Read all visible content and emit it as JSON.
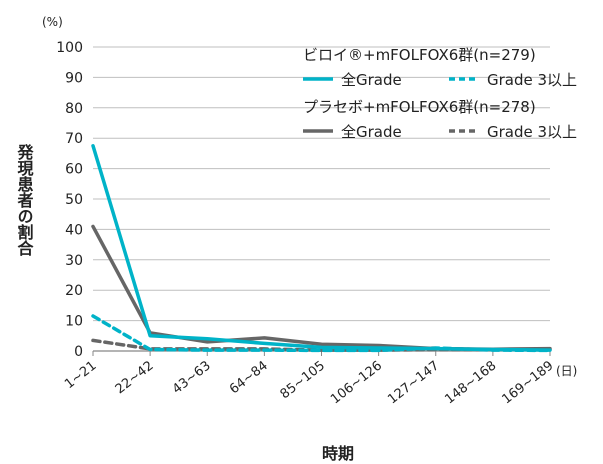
{
  "chart_data": {
    "type": "line",
    "xlabel": "時期",
    "x_unit": "(日)",
    "ylabel": "発現患者の割合",
    "y_unit": "(%)",
    "ylim": [
      0,
      100
    ],
    "yticks": [
      0,
      10,
      20,
      30,
      40,
      50,
      60,
      70,
      80,
      90,
      100
    ],
    "grid": true,
    "legend_position": "top-right",
    "categories": [
      "1~21",
      "22~42",
      "43~63",
      "64~84",
      "85~105",
      "106~126",
      "127~147",
      "148~168",
      "169~189"
    ],
    "groups": [
      {
        "title": "ビロイ®+mFOLFOX6群(n=279)"
      },
      {
        "title": "プラセボ+mFOLFOX6群(n=278)"
      }
    ],
    "series": [
      {
        "name": "全Grade",
        "group": 0,
        "color": "#00b3c8",
        "dash": false,
        "values": [
          67.5,
          5.0,
          4.0,
          2.5,
          1.2,
          1.0,
          0.8,
          0.5,
          0.3
        ]
      },
      {
        "name": "Grade 3以上",
        "group": 0,
        "color": "#00b3c8",
        "dash": true,
        "values": [
          11.5,
          0.5,
          0.3,
          0.3,
          0.2,
          0.2,
          1.0,
          0.3,
          0.2
        ]
      },
      {
        "name": "全Grade",
        "group": 1,
        "color": "#666666",
        "dash": false,
        "values": [
          41.0,
          6.0,
          3.0,
          4.3,
          2.2,
          1.8,
          0.8,
          0.6,
          0.8
        ]
      },
      {
        "name": "Grade 3以上",
        "group": 1,
        "color": "#666666",
        "dash": true,
        "values": [
          3.5,
          0.7,
          0.7,
          0.7,
          0.3,
          0.3,
          0.5,
          0.5,
          0.5
        ]
      }
    ]
  }
}
